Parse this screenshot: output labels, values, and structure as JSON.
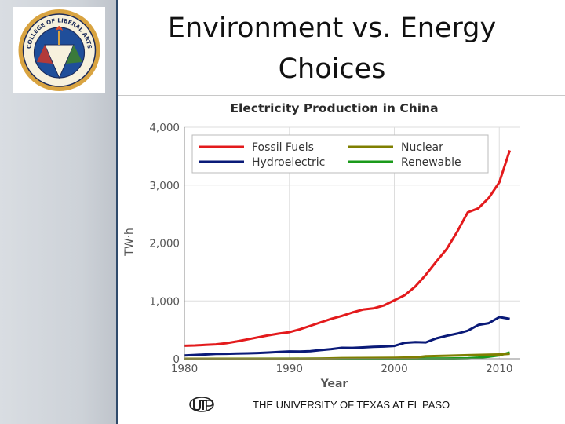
{
  "slide": {
    "title_line1": "Environment vs. Energy",
    "title_line2": "Choices",
    "footer": "THE UNIVERSITY OF TEXAS AT EL PASO"
  },
  "logo": {
    "text": "COLLEGE OF LIBERAL ARTS",
    "ring_color": "#d9a441",
    "inner_color": "#1f4e9a"
  },
  "colors": {
    "fossil": "#e31a1c",
    "hydro": "#0a1a78",
    "nuclear": "#7f7f00",
    "renewable": "#1a9a1a",
    "sidebar_edge": "#2f4a6a"
  },
  "chart_data": {
    "type": "line",
    "title": "Electricity Production in China",
    "xlabel": "Year",
    "ylabel": "TW·h",
    "xlim": [
      1980,
      2012
    ],
    "ylim": [
      0,
      4000
    ],
    "xticks": [
      1980,
      1990,
      2000,
      2010
    ],
    "yticks": [
      0,
      1000,
      2000,
      3000,
      4000
    ],
    "ytick_labels": [
      "0",
      "1,000",
      "2,000",
      "3,000",
      "4,000"
    ],
    "grid": true,
    "legend_position": "top",
    "series": [
      {
        "name": "Fossil Fuels",
        "color": "#e31a1c",
        "x": [
          1980,
          1981,
          1982,
          1983,
          1984,
          1985,
          1986,
          1987,
          1988,
          1989,
          1990,
          1991,
          1992,
          1993,
          1994,
          1995,
          1996,
          1997,
          1998,
          1999,
          2000,
          2001,
          2002,
          2003,
          2004,
          2005,
          2006,
          2007,
          2008,
          2009,
          2010,
          2011
        ],
        "y": [
          225,
          230,
          240,
          250,
          270,
          300,
          335,
          370,
          405,
          435,
          460,
          510,
          570,
          630,
          690,
          740,
          800,
          850,
          870,
          920,
          1010,
          1100,
          1250,
          1450,
          1680,
          1900,
          2200,
          2530,
          2600,
          2780,
          3050,
          3600
        ]
      },
      {
        "name": "Nuclear",
        "color": "#7f7f00",
        "x": [
          1980,
          1990,
          1993,
          1995,
          2000,
          2002,
          2003,
          2005,
          2007,
          2009,
          2010,
          2011
        ],
        "y": [
          0,
          0,
          3,
          12,
          17,
          25,
          43,
          53,
          62,
          70,
          74,
          87
        ]
      },
      {
        "name": "Hydroelectric",
        "color": "#0a1a78",
        "x": [
          1980,
          1981,
          1982,
          1983,
          1984,
          1985,
          1986,
          1987,
          1988,
          1989,
          1990,
          1991,
          1992,
          1993,
          1994,
          1995,
          1996,
          1997,
          1998,
          1999,
          2000,
          2001,
          2002,
          2003,
          2004,
          2005,
          2006,
          2007,
          2008,
          2009,
          2010,
          2011
        ],
        "y": [
          58,
          66,
          74,
          86,
          87,
          92,
          95,
          100,
          109,
          118,
          127,
          125,
          131,
          151,
          168,
          190,
          188,
          196,
          208,
          212,
          222,
          277,
          288,
          283,
          353,
          397,
          435,
          485,
          585,
          615,
          720,
          690
        ]
      },
      {
        "name": "Renewable",
        "color": "#1a9a1a",
        "x": [
          1980,
          1990,
          2000,
          2005,
          2007,
          2008,
          2009,
          2010,
          2011
        ],
        "y": [
          0,
          1,
          3,
          5,
          10,
          20,
          35,
          60,
          110
        ]
      }
    ]
  }
}
